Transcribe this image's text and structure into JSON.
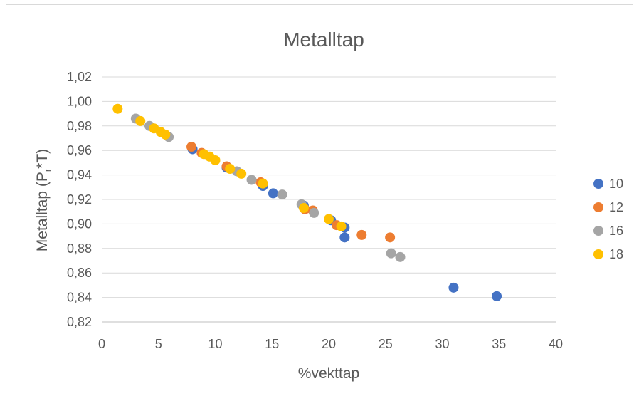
{
  "chart_data": {
    "type": "scatter",
    "title": "Metalltap",
    "xlabel": "%vekttap",
    "ylabel_main": "Metalltap (P",
    "ylabel_sub": "r",
    "ylabel_tail": "*T)",
    "xlim": [
      0,
      40
    ],
    "ylim": [
      0.82,
      1.02
    ],
    "x_ticks": [
      0,
      5,
      10,
      15,
      20,
      25,
      30,
      35,
      40
    ],
    "x_tick_labels": [
      "0",
      "5",
      "10",
      "15",
      "20",
      "25",
      "30",
      "35",
      "40"
    ],
    "y_ticks": [
      0.82,
      0.84,
      0.86,
      0.88,
      0.9,
      0.92,
      0.94,
      0.96,
      0.98,
      1.0,
      1.02
    ],
    "y_tick_labels": [
      "0,82",
      "0,84",
      "0,86",
      "0,88",
      "0,90",
      "0,92",
      "0,94",
      "0,96",
      "0,98",
      "1,00",
      "1,02"
    ],
    "grid": "horizontal",
    "legend_position": "right",
    "series": [
      {
        "name": "10",
        "color": "#4472C4",
        "points": [
          [
            8.0,
            0.961
          ],
          [
            11.0,
            0.946
          ],
          [
            14.2,
            0.931
          ],
          [
            15.1,
            0.925
          ],
          [
            17.8,
            0.915
          ],
          [
            20.2,
            0.903
          ],
          [
            21.4,
            0.897
          ],
          [
            21.4,
            0.889
          ],
          [
            31.0,
            0.848
          ],
          [
            34.8,
            0.841
          ]
        ]
      },
      {
        "name": "12",
        "color": "#ED7D31",
        "points": [
          [
            7.9,
            0.963
          ],
          [
            8.8,
            0.958
          ],
          [
            11.0,
            0.947
          ],
          [
            14.0,
            0.934
          ],
          [
            17.9,
            0.912
          ],
          [
            18.6,
            0.911
          ],
          [
            20.7,
            0.899
          ],
          [
            22.9,
            0.891
          ],
          [
            25.4,
            0.889
          ]
        ]
      },
      {
        "name": "16",
        "color": "#A5A5A5",
        "points": [
          [
            3.0,
            0.986
          ],
          [
            4.2,
            0.98
          ],
          [
            5.9,
            0.971
          ],
          [
            11.9,
            0.943
          ],
          [
            13.2,
            0.936
          ],
          [
            15.9,
            0.924
          ],
          [
            17.6,
            0.916
          ],
          [
            18.7,
            0.909
          ],
          [
            25.5,
            0.876
          ],
          [
            26.3,
            0.873
          ]
        ]
      },
      {
        "name": "18",
        "color": "#FFC000",
        "points": [
          [
            1.4,
            0.994
          ],
          [
            3.4,
            0.984
          ],
          [
            4.6,
            0.978
          ],
          [
            5.2,
            0.975
          ],
          [
            5.6,
            0.973
          ],
          [
            9.0,
            0.957
          ],
          [
            9.5,
            0.955
          ],
          [
            10.0,
            0.952
          ],
          [
            11.3,
            0.945
          ],
          [
            12.3,
            0.941
          ],
          [
            14.2,
            0.933
          ],
          [
            17.8,
            0.913
          ],
          [
            20.0,
            0.904
          ],
          [
            21.1,
            0.898
          ]
        ]
      }
    ]
  }
}
